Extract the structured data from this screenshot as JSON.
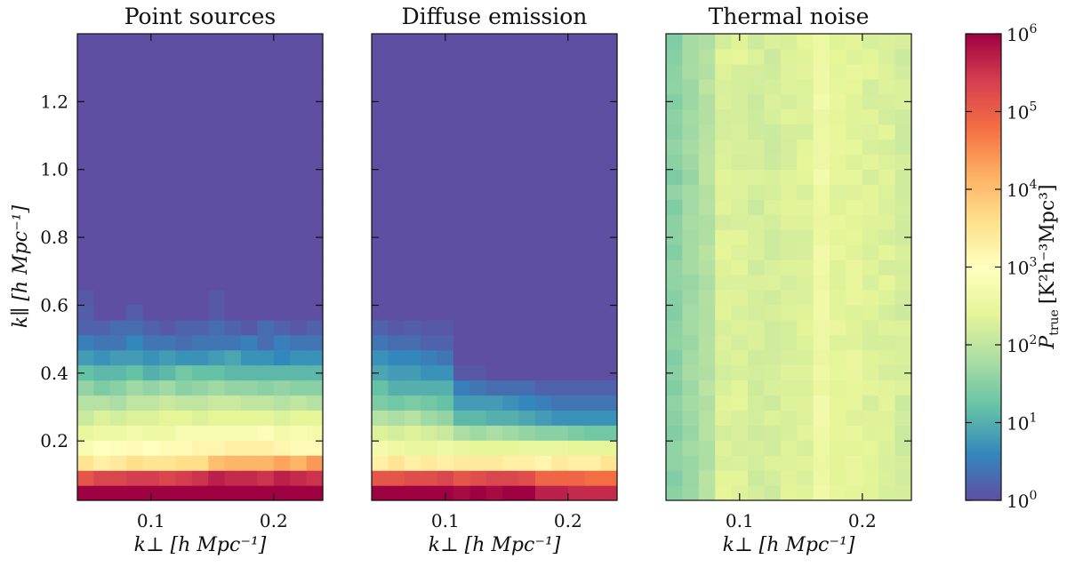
{
  "figure": {
    "colorbar": {
      "label_main": "P",
      "label_sub": "true",
      "label_units": "[K²h⁻³Mpc³]",
      "scale": "log",
      "range": [
        1,
        1000000
      ],
      "ticks": [
        {
          "exp": "0",
          "value": 1
        },
        {
          "exp": "1",
          "value": 10
        },
        {
          "exp": "2",
          "value": 100
        },
        {
          "exp": "3",
          "value": 1000
        },
        {
          "exp": "4",
          "value": 10000
        },
        {
          "exp": "5",
          "value": 100000
        },
        {
          "exp": "6",
          "value": 1000000
        }
      ],
      "colormap": "Spectral_r",
      "colormap_stops": [
        "#5e4fa2",
        "#3288bd",
        "#66c2a5",
        "#abdda4",
        "#e6f598",
        "#ffffbf",
        "#fee08b",
        "#fdae61",
        "#f46d43",
        "#d53e4f",
        "#9e0142"
      ]
    }
  },
  "chart_data": [
    {
      "type": "heatmap",
      "title": "Point sources",
      "xlabel": "k⊥ [h Mpc⁻¹]",
      "ylabel": "k∥ [h Mpc⁻¹]",
      "x_range": [
        0.04,
        0.24
      ],
      "y_range": [
        0.025,
        1.4
      ],
      "xticks": [
        "0.1",
        "0.2"
      ],
      "yticks": [
        "0.2",
        "0.4",
        "0.6",
        "0.8",
        "1.0",
        "1.2"
      ],
      "ncols": 15,
      "nrows": 31,
      "log10_values_bottom_up": [
        [
          6.0,
          6.0,
          6.0,
          6.0,
          6.0,
          6.0,
          6.0,
          6.0,
          6.0,
          6.0,
          6.0,
          6.0,
          6.0,
          6.0,
          6.0
        ],
        [
          5.1,
          5.3,
          5.3,
          5.4,
          5.4,
          5.3,
          5.4,
          5.5,
          5.7,
          5.6,
          5.6,
          5.5,
          5.7,
          5.6,
          5.5
        ],
        [
          3.5,
          3.3,
          3.4,
          3.6,
          3.5,
          3.5,
          3.6,
          3.6,
          4.0,
          4.1,
          4.1,
          4.1,
          4.3,
          4.1,
          4.4
        ],
        [
          2.8,
          3.0,
          2.9,
          3.1,
          3.0,
          3.1,
          3.1,
          3.2,
          3.2,
          3.3,
          3.3,
          3.3,
          3.2,
          3.1,
          3.1
        ],
        [
          2.5,
          2.6,
          2.6,
          2.7,
          2.6,
          2.6,
          2.8,
          2.8,
          2.8,
          2.8,
          2.8,
          2.9,
          2.7,
          2.8,
          2.7
        ],
        [
          2.1,
          2.3,
          2.2,
          2.3,
          2.3,
          2.4,
          2.4,
          2.3,
          2.4,
          2.4,
          2.4,
          2.4,
          2.3,
          2.4,
          2.4
        ],
        [
          1.9,
          1.9,
          1.8,
          2.0,
          2.0,
          2.1,
          2.0,
          2.0,
          2.1,
          2.1,
          2.0,
          2.0,
          1.9,
          2.0,
          1.9
        ],
        [
          1.6,
          1.4,
          1.5,
          1.7,
          1.6,
          1.7,
          1.5,
          1.6,
          1.7,
          1.6,
          1.6,
          1.5,
          1.6,
          1.5,
          1.5
        ],
        [
          1.2,
          1.1,
          1.1,
          1.2,
          1.0,
          1.1,
          1.3,
          1.2,
          1.2,
          1.1,
          1.1,
          1.1,
          1.1,
          1.1,
          1.1
        ],
        [
          0.8,
          0.7,
          0.8,
          0.8,
          0.7,
          0.8,
          0.7,
          0.7,
          0.8,
          0.9,
          0.7,
          0.7,
          0.6,
          0.7,
          0.7
        ],
        [
          0.5,
          0.4,
          0.4,
          0.6,
          0.4,
          0.4,
          0.3,
          0.4,
          0.4,
          0.4,
          0.5,
          0.3,
          0.5,
          0.4,
          0.4
        ],
        [
          0.2,
          0.2,
          0.3,
          0.3,
          0.2,
          0.1,
          0.2,
          0.2,
          0.3,
          0.2,
          0.1,
          0.3,
          0.2,
          0.1,
          0.2
        ],
        [
          0.15,
          0.0,
          0.0,
          0.15,
          0.0,
          0.0,
          0.0,
          0.0,
          0.1,
          0.0,
          0.0,
          0.0,
          0.0,
          0.0,
          0.0
        ],
        [
          0.1,
          0.0,
          0.0,
          0.0,
          0.0,
          0.0,
          0.0,
          0.0,
          0.1,
          0.0,
          0.0,
          0.0,
          0.0,
          0.0,
          0.0
        ],
        [
          0,
          0,
          0,
          0,
          0,
          0,
          0,
          0,
          0,
          0,
          0,
          0,
          0,
          0,
          0
        ],
        [
          0,
          0,
          0,
          0,
          0,
          0,
          0,
          0,
          0,
          0,
          0,
          0,
          0,
          0,
          0
        ],
        [
          0,
          0,
          0,
          0,
          0,
          0,
          0,
          0,
          0,
          0,
          0,
          0,
          0,
          0,
          0
        ],
        [
          0,
          0,
          0,
          0,
          0,
          0,
          0,
          0,
          0,
          0,
          0,
          0,
          0,
          0,
          0
        ],
        [
          0,
          0,
          0,
          0,
          0,
          0,
          0,
          0,
          0,
          0,
          0,
          0,
          0,
          0,
          0
        ],
        [
          0,
          0,
          0,
          0,
          0,
          0,
          0,
          0,
          0,
          0,
          0,
          0,
          0,
          0,
          0
        ],
        [
          0,
          0,
          0,
          0,
          0,
          0,
          0,
          0,
          0,
          0,
          0,
          0,
          0,
          0,
          0
        ],
        [
          0,
          0,
          0,
          0,
          0,
          0,
          0,
          0,
          0,
          0,
          0,
          0,
          0,
          0,
          0
        ],
        [
          0,
          0,
          0,
          0,
          0,
          0,
          0,
          0,
          0,
          0,
          0,
          0,
          0,
          0,
          0
        ],
        [
          0,
          0,
          0,
          0,
          0,
          0,
          0,
          0,
          0,
          0,
          0,
          0,
          0,
          0,
          0
        ],
        [
          0,
          0,
          0,
          0,
          0,
          0,
          0,
          0,
          0,
          0,
          0,
          0,
          0,
          0,
          0
        ],
        [
          0,
          0,
          0,
          0,
          0,
          0,
          0,
          0,
          0,
          0,
          0,
          0,
          0,
          0,
          0
        ],
        [
          0,
          0,
          0,
          0,
          0,
          0,
          0,
          0,
          0,
          0,
          0,
          0,
          0,
          0,
          0
        ],
        [
          0,
          0,
          0,
          0,
          0,
          0,
          0,
          0,
          0,
          0,
          0,
          0,
          0,
          0,
          0
        ],
        [
          0,
          0,
          0,
          0,
          0,
          0,
          0,
          0,
          0,
          0,
          0,
          0,
          0,
          0,
          0
        ],
        [
          0,
          0,
          0,
          0,
          0,
          0,
          0,
          0,
          0,
          0,
          0,
          0,
          0,
          0,
          0
        ],
        [
          0,
          0,
          0,
          0,
          0,
          0,
          0,
          0,
          0,
          0,
          0,
          0,
          0,
          0,
          0
        ]
      ]
    },
    {
      "type": "heatmap",
      "title": "Diffuse emission",
      "xlabel": "k⊥ [h Mpc⁻¹]",
      "ylabel": "",
      "x_range": [
        0.04,
        0.24
      ],
      "y_range": [
        0.025,
        1.4
      ],
      "xticks": [
        "0.1",
        "0.2"
      ],
      "yticks": [],
      "ncols": 15,
      "nrows": 31,
      "log10_values_bottom_up": [
        [
          6.0,
          6.0,
          6.0,
          6.0,
          6.0,
          5.9,
          6.0,
          5.9,
          6.0,
          6.0,
          5.7,
          5.7,
          5.6,
          5.6,
          5.6
        ],
        [
          5.1,
          5.1,
          5.2,
          5.2,
          5.3,
          5.1,
          5.2,
          5.3,
          5.3,
          5.2,
          4.9,
          4.9,
          4.9,
          4.8,
          4.8
        ],
        [
          3.3,
          3.5,
          3.3,
          3.4,
          3.3,
          3.4,
          3.4,
          3.4,
          3.3,
          3.3,
          3.2,
          3.4,
          3.3,
          3.3,
          3.5
        ],
        [
          2.7,
          2.6,
          2.5,
          2.5,
          2.6,
          2.5,
          2.4,
          2.4,
          2.4,
          2.5,
          2.5,
          2.5,
          2.4,
          2.4,
          2.4
        ],
        [
          2.3,
          2.2,
          2.3,
          2.2,
          2.1,
          1.8,
          1.7,
          1.8,
          1.7,
          1.6,
          1.5,
          1.5,
          1.4,
          1.3,
          1.3
        ],
        [
          1.9,
          1.8,
          1.9,
          1.7,
          1.6,
          1.1,
          1.1,
          1.0,
          1.0,
          0.9,
          0.8,
          0.7,
          0.7,
          0.7,
          0.7
        ],
        [
          1.4,
          1.3,
          1.4,
          1.3,
          1.2,
          0.8,
          0.8,
          0.8,
          0.7,
          0.6,
          0.5,
          0.4,
          0.4,
          0.4,
          0.4
        ],
        [
          1.2,
          1.0,
          1.0,
          1.0,
          1.0,
          0.5,
          0.4,
          0.3,
          0.3,
          0.3,
          0.2,
          0.2,
          0.2,
          0.2,
          0.2
        ],
        [
          0.9,
          0.8,
          0.8,
          0.7,
          0.7,
          0.1,
          0.1,
          0.0,
          0.0,
          0.0,
          0.0,
          0.0,
          0.0,
          0.0,
          0.0
        ],
        [
          0.7,
          0.6,
          0.6,
          0.5,
          0.4,
          0.0,
          0.0,
          0.0,
          0.0,
          0.0,
          0.0,
          0.0,
          0.0,
          0.0,
          0.0
        ],
        [
          0.4,
          0.3,
          0.3,
          0.2,
          0.2,
          0.0,
          0.0,
          0.0,
          0.0,
          0.0,
          0.0,
          0.0,
          0.0,
          0.0,
          0.0
        ],
        [
          0.2,
          0.1,
          0.15,
          0.1,
          0.1,
          0,
          0,
          0,
          0,
          0,
          0,
          0,
          0,
          0,
          0
        ],
        [
          0,
          0,
          0,
          0,
          0,
          0,
          0,
          0,
          0,
          0,
          0,
          0,
          0,
          0,
          0
        ],
        [
          0,
          0,
          0,
          0,
          0,
          0,
          0,
          0,
          0,
          0,
          0,
          0,
          0,
          0,
          0
        ],
        [
          0,
          0,
          0,
          0,
          0,
          0,
          0,
          0,
          0,
          0,
          0,
          0,
          0,
          0,
          0
        ],
        [
          0,
          0,
          0,
          0,
          0,
          0,
          0,
          0,
          0,
          0,
          0,
          0,
          0,
          0,
          0
        ],
        [
          0,
          0,
          0,
          0,
          0,
          0,
          0,
          0,
          0,
          0,
          0,
          0,
          0,
          0,
          0
        ],
        [
          0,
          0,
          0,
          0,
          0,
          0,
          0,
          0,
          0,
          0,
          0,
          0,
          0,
          0,
          0
        ],
        [
          0,
          0,
          0,
          0,
          0,
          0,
          0,
          0,
          0,
          0,
          0,
          0,
          0,
          0,
          0
        ],
        [
          0,
          0,
          0,
          0,
          0,
          0,
          0,
          0,
          0,
          0,
          0,
          0,
          0,
          0,
          0
        ],
        [
          0,
          0,
          0,
          0,
          0,
          0,
          0,
          0,
          0,
          0,
          0,
          0,
          0,
          0,
          0
        ],
        [
          0,
          0,
          0,
          0,
          0,
          0,
          0,
          0,
          0,
          0,
          0,
          0,
          0,
          0,
          0
        ],
        [
          0,
          0,
          0,
          0,
          0,
          0,
          0,
          0,
          0,
          0,
          0,
          0,
          0,
          0,
          0
        ],
        [
          0,
          0,
          0,
          0,
          0,
          0,
          0,
          0,
          0,
          0,
          0,
          0,
          0,
          0,
          0
        ],
        [
          0,
          0,
          0,
          0,
          0,
          0,
          0,
          0,
          0,
          0,
          0,
          0,
          0,
          0,
          0
        ],
        [
          0,
          0,
          0,
          0,
          0,
          0,
          0,
          0,
          0,
          0,
          0,
          0,
          0,
          0,
          0
        ],
        [
          0,
          0,
          0,
          0,
          0,
          0,
          0,
          0,
          0,
          0,
          0,
          0,
          0,
          0,
          0
        ],
        [
          0,
          0,
          0,
          0,
          0,
          0,
          0,
          0,
          0,
          0,
          0,
          0,
          0,
          0,
          0
        ],
        [
          0,
          0,
          0,
          0,
          0,
          0,
          0,
          0,
          0,
          0,
          0,
          0,
          0,
          0,
          0
        ],
        [
          0,
          0,
          0,
          0,
          0,
          0,
          0,
          0,
          0,
          0,
          0,
          0,
          0,
          0,
          0
        ],
        [
          0,
          0,
          0,
          0,
          0,
          0,
          0,
          0,
          0,
          0,
          0,
          0,
          0,
          0,
          0
        ]
      ]
    },
    {
      "type": "heatmap",
      "title": "Thermal noise",
      "xlabel": "k⊥ [h Mpc⁻¹]",
      "ylabel": "",
      "x_range": [
        0.04,
        0.24
      ],
      "y_range": [
        0.025,
        1.4
      ],
      "xticks": [
        "0.1",
        "0.2"
      ],
      "yticks": [],
      "ncols": 15,
      "nrows": 31,
      "column_mean_log10": [
        1.5,
        1.7,
        1.9,
        2.3,
        2.3,
        2.2,
        2.2,
        2.3,
        2.3,
        2.6,
        2.4,
        2.4,
        2.3,
        2.3,
        2.2
      ],
      "cell_jitter_log10": 0.1
    }
  ]
}
